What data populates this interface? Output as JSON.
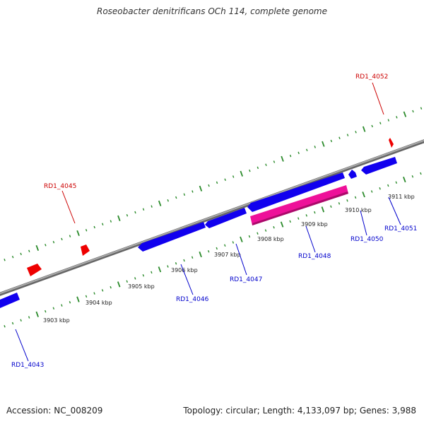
{
  "title": "Roseobacter denitrificans OCh 114, complete genome",
  "footer": {
    "accession": "Accession: NC_008209",
    "summary": "Topology: circular; Length: 4,133,097 bp; Genes: 3,988"
  },
  "colors": {
    "forward_gene": "#ee0000",
    "reverse_gene": "#1100ee",
    "pseudo_gene": "#ee1199",
    "backbone": "#888888",
    "ticks": "#2a8a2a",
    "forward_label": "#cc0000",
    "reverse_label": "#0000cc"
  },
  "scale": {
    "unit": "kbp",
    "labels": [
      "3903 kbp",
      "3904 kbp",
      "3905 kbp",
      "3906 kbp",
      "3907 kbp",
      "3908 kbp",
      "3909 kbp",
      "3910 kbp",
      "3911 kbp"
    ]
  },
  "genes": [
    {
      "id": "RD1_4052",
      "strand": "forward",
      "type": "gene"
    },
    {
      "id": "RD1_4045",
      "strand": "forward",
      "type": "gene"
    },
    {
      "id": "RD1_4043",
      "strand": "reverse",
      "type": "gene"
    },
    {
      "id": "RD1_4046",
      "strand": "reverse",
      "type": "gene"
    },
    {
      "id": "RD1_4047",
      "strand": "reverse",
      "type": "gene"
    },
    {
      "id": "RD1_4048",
      "strand": "reverse",
      "type": "pseudo"
    },
    {
      "id": "RD1_4050",
      "strand": "reverse",
      "type": "gene"
    },
    {
      "id": "RD1_4051",
      "strand": "reverse",
      "type": "gene"
    }
  ]
}
